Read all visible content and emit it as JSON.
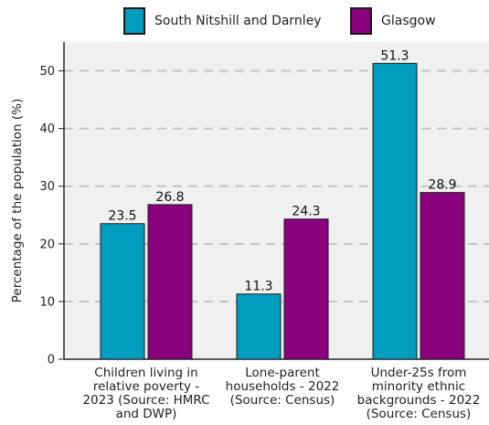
{
  "chart_data": {
    "type": "bar",
    "categories": [
      [
        "Children living in",
        "relative poverty -",
        "2023 (Source: HMRC",
        "and DWP)"
      ],
      [
        "Lone-parent",
        "households - 2022",
        "(Source: Census)"
      ],
      [
        "Under-25s from",
        "minority ethnic",
        "backgrounds - 2022",
        "(Source: Census)"
      ]
    ],
    "series": [
      {
        "name": "South Nitshill and Darnley",
        "color": "#009dbf",
        "values": [
          23.5,
          11.3,
          51.3
        ]
      },
      {
        "name": "Glasgow",
        "color": "#8b007d",
        "values": [
          26.8,
          24.3,
          28.9
        ]
      }
    ],
    "ylabel": "Percentage of the population (%)",
    "ylim": [
      0,
      55
    ],
    "yticks": [
      0,
      10,
      20,
      30,
      40,
      50
    ],
    "grid": true,
    "legend_position": "top",
    "plot_background": "#f0f0f0"
  }
}
